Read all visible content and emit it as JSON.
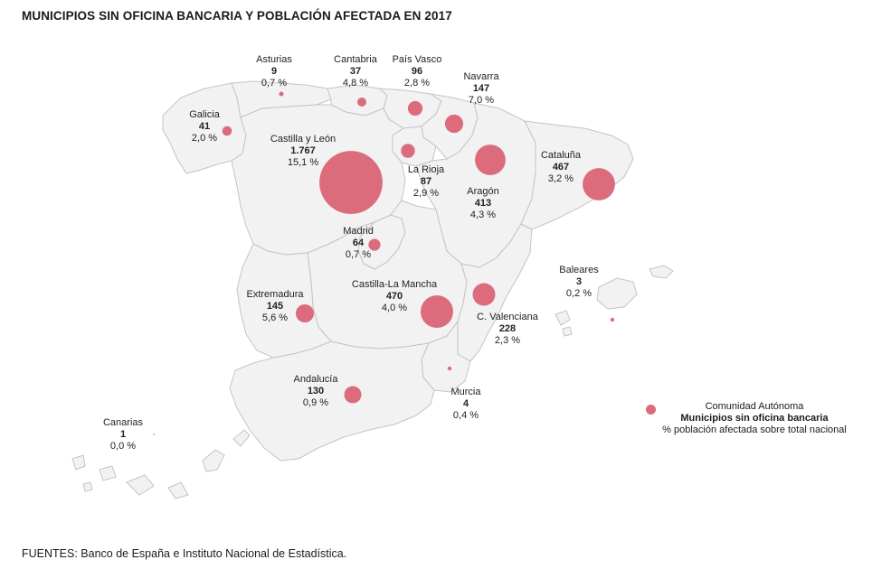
{
  "title": "MUNICIPIOS SIN OFICINA BANCARIA Y POBLACIÓN AFECTADA EN 2017",
  "source": "FUENTES: Banco de España e Instituto Nacional de Estadística.",
  "colors": {
    "bubble": "#dc6b7c",
    "region_fill": "#f2f2f2",
    "region_stroke": "#c4c4c4"
  },
  "regions": [
    {
      "id": "asturias",
      "name": "Asturias",
      "municipios": "9",
      "poblacion": "0,7 %",
      "value": 9
    },
    {
      "id": "cantabria",
      "name": "Cantabria",
      "municipios": "37",
      "poblacion": "4,8 %",
      "value": 37
    },
    {
      "id": "pais-vasco",
      "name": "País Vasco",
      "municipios": "96",
      "poblacion": "2,8 %",
      "value": 96
    },
    {
      "id": "navarra",
      "name": "Navarra",
      "municipios": "147",
      "poblacion": "7,0 %",
      "value": 147
    },
    {
      "id": "galicia",
      "name": "Galicia",
      "municipios": "41",
      "poblacion": "2,0 %",
      "value": 41
    },
    {
      "id": "castilla-leon",
      "name": "Castilla y León",
      "municipios": "1.767",
      "poblacion": "15,1 %",
      "value": 1767
    },
    {
      "id": "la-rioja",
      "name": "La Rioja",
      "municipios": "87",
      "poblacion": "2,9 %",
      "value": 87
    },
    {
      "id": "cataluna",
      "name": "Cataluña",
      "municipios": "467",
      "poblacion": "3,2 %",
      "value": 467
    },
    {
      "id": "aragon",
      "name": "Aragón",
      "municipios": "413",
      "poblacion": "4,3 %",
      "value": 413
    },
    {
      "id": "madrid",
      "name": "Madrid",
      "municipios": "64",
      "poblacion": "0,7 %",
      "value": 64
    },
    {
      "id": "baleares",
      "name": "Baleares",
      "municipios": "3",
      "poblacion": "0,2 %",
      "value": 3
    },
    {
      "id": "extremadura",
      "name": "Extremadura",
      "municipios": "145",
      "poblacion": "5,6 %",
      "value": 145
    },
    {
      "id": "castilla-la-mancha",
      "name": "Castilla-La Mancha",
      "municipios": "470",
      "poblacion": "4,0 %",
      "value": 470
    },
    {
      "id": "c-valenciana",
      "name": "C. Valenciana",
      "municipios": "228",
      "poblacion": "2,3 %",
      "value": 228
    },
    {
      "id": "andalucia",
      "name": "Andalucía",
      "municipios": "130",
      "poblacion": "0,9 %",
      "value": 130
    },
    {
      "id": "murcia",
      "name": "Murcia",
      "municipios": "4",
      "poblacion": "0,4 %",
      "value": 4
    },
    {
      "id": "canarias",
      "name": "Canarias",
      "municipios": "1",
      "poblacion": "0,0 %",
      "value": 1
    }
  ],
  "legend": {
    "line1": "Comunidad Autónoma",
    "line2": "Municipios sin oficina bancaria",
    "line3": "% población afectada sobre total nacional"
  }
}
